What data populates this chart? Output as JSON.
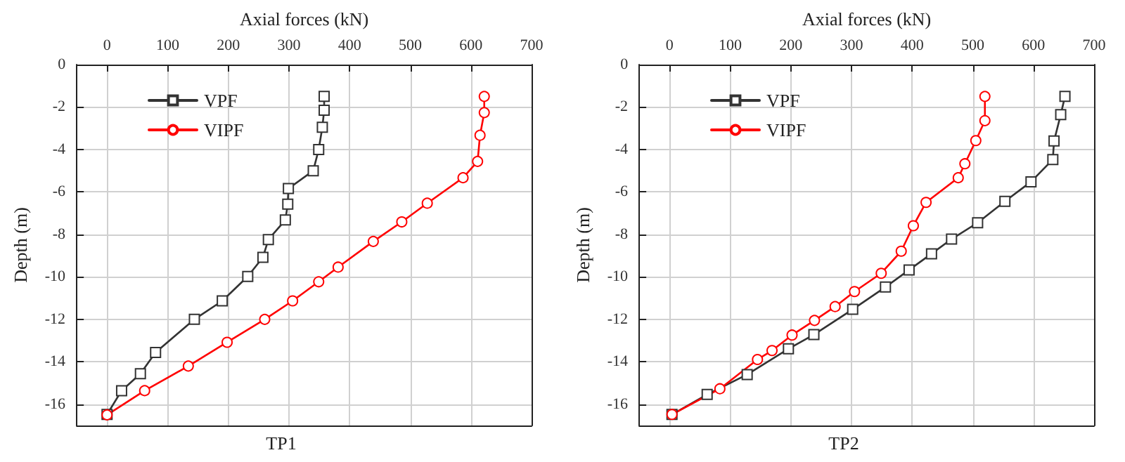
{
  "chart_data": [
    {
      "type": "line",
      "title": "TP1",
      "xlabel": "Axial forces (kN)",
      "ylabel": "Depth (m)",
      "xlim": [
        -50,
        700
      ],
      "xticks": [
        0,
        100,
        200,
        300,
        400,
        500,
        600,
        700
      ],
      "ylim": [
        -17,
        0
      ],
      "yticks": [
        -16,
        -14,
        -12,
        -10,
        -8,
        -6,
        -4,
        -2,
        0
      ],
      "grid": true,
      "legend": "top left",
      "line_style": "solid",
      "series": [
        {
          "name": "VPF",
          "color": "#333333",
          "marker": "square",
          "x": [
            358,
            358,
            355,
            349,
            340,
            299,
            298,
            294,
            266,
            257,
            232,
            190,
            144,
            80,
            55,
            24,
            0
          ],
          "values": [
            -1.5,
            -2.15,
            -2.95,
            -4.0,
            -5.0,
            -5.84,
            -6.57,
            -7.32,
            -8.24,
            -9.08,
            -9.98,
            -11.13,
            -12.0,
            -13.56,
            -14.56,
            -15.36,
            -16.48
          ]
        },
        {
          "name": "VIPF",
          "color": "#ff0000",
          "marker": "circle",
          "x": [
            622,
            622,
            615,
            611,
            587,
            528,
            486,
            439,
            381,
            349,
            306,
            260,
            198,
            134,
            62,
            0
          ],
          "values": [
            -1.5,
            -2.26,
            -3.33,
            -4.56,
            -5.33,
            -6.53,
            -7.41,
            -8.33,
            -9.54,
            -10.23,
            -11.13,
            -12.0,
            -13.08,
            -14.2,
            -15.36,
            -16.5
          ]
        }
      ]
    },
    {
      "type": "line",
      "title": "TP2",
      "xlabel": "Axial forces (kN)",
      "ylabel": "Depth (m)",
      "xlim": [
        -50,
        700
      ],
      "xticks": [
        0,
        100,
        200,
        300,
        400,
        500,
        600,
        700
      ],
      "ylim": [
        -17,
        0
      ],
      "yticks": [
        -16,
        -14,
        -12,
        -10,
        -8,
        -6,
        -4,
        -2,
        0
      ],
      "grid": true,
      "legend": "top left",
      "line_style": "solid",
      "series": [
        {
          "name": "VPF",
          "color": "#333333",
          "marker": "square",
          "x": [
            652,
            645,
            634,
            632,
            596,
            553,
            508,
            465,
            432,
            395,
            356,
            302,
            238,
            196,
            128,
            62,
            4
          ],
          "values": [
            -1.5,
            -2.36,
            -3.6,
            -4.47,
            -5.52,
            -6.44,
            -7.45,
            -8.22,
            -8.91,
            -9.67,
            -10.48,
            -11.53,
            -12.72,
            -13.39,
            -14.6,
            -15.54,
            -16.48
          ]
        },
        {
          "name": "VIPF",
          "color": "#ff0000",
          "marker": "circle",
          "x": [
            520,
            520,
            505,
            487,
            476,
            423,
            402,
            382,
            349,
            305,
            273,
            239,
            202,
            169,
            145,
            83,
            4
          ],
          "values": [
            -1.5,
            -2.64,
            -3.58,
            -4.67,
            -5.33,
            -6.49,
            -7.59,
            -8.79,
            -9.83,
            -10.69,
            -11.4,
            -12.05,
            -12.74,
            -13.47,
            -13.89,
            -15.27,
            -16.48
          ]
        }
      ]
    }
  ]
}
